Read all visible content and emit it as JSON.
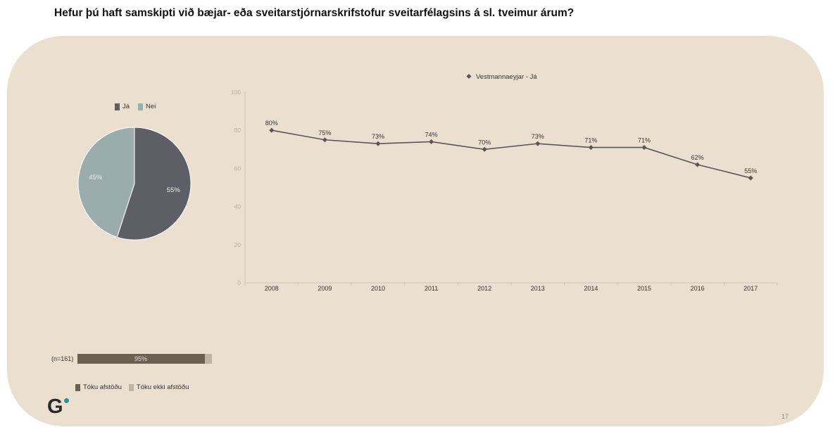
{
  "title": "Hefur þú haft samskipti við bæjar- eða sveitarstjórnarskrifstofur sveitarfélagsins á sl. tveimur árum?",
  "page_number": "17",
  "logo_text": "G",
  "colors": {
    "panel": "#ebe0d0",
    "ja": "#5e5f66",
    "nei": "#9aadac",
    "line": "#5b5558",
    "took_position": "#6b6052",
    "no_position": "#bfb4a6",
    "logo_dot": "#2e8fa0"
  },
  "chart_data": [
    {
      "type": "pie",
      "legend_position": "top",
      "legend": [
        {
          "name": "Já",
          "color": "#5e5f66"
        },
        {
          "name": "Nei",
          "color": "#9aadac"
        }
      ],
      "slices": [
        {
          "name": "Já",
          "value": 55,
          "label": "55%"
        },
        {
          "name": "Nei",
          "value": 45,
          "label": "45%"
        }
      ]
    },
    {
      "type": "line",
      "legend_position": "top",
      "series": [
        {
          "name": "Vestmannaeyjar - Já",
          "values": [
            80,
            75,
            73,
            74,
            70,
            73,
            71,
            71,
            62,
            55
          ],
          "labels": [
            "80%",
            "75%",
            "73%",
            "74%",
            "70%",
            "73%",
            "71%",
            "71%",
            "62%",
            "55%"
          ]
        }
      ],
      "categories": [
        "2008",
        "2009",
        "2010",
        "2011",
        "2012",
        "2013",
        "2014",
        "2015",
        "2016",
        "2017"
      ],
      "ylim": [
        0,
        100
      ],
      "yticks": [
        "0",
        "20",
        "40",
        "60",
        "80",
        "100"
      ],
      "grid": false
    },
    {
      "type": "bar",
      "orientation": "horizontal-stacked",
      "category": "(n=161)",
      "values": [
        {
          "name": "Tóku afstöðu",
          "value": 95,
          "label": "95%"
        },
        {
          "name": "Tóku ekki afstöðu",
          "value": 5
        }
      ],
      "legend": [
        "Tóku afstöðu",
        "Tóku ekki afstöðu"
      ],
      "legend_position": "bottom"
    }
  ]
}
